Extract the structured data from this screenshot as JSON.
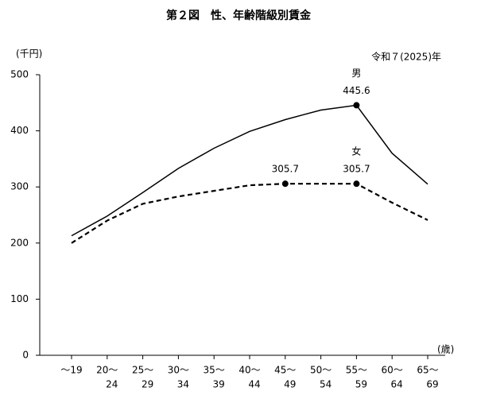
{
  "chart_data": {
    "type": "line",
    "title": "第２図　性、年齢階級別賃金",
    "y_unit": "(千円)",
    "x_unit": "(歳)",
    "note": "令和７(2025)年",
    "categories": [
      [
        "～19"
      ],
      [
        "20～",
        "24"
      ],
      [
        "25～",
        "29"
      ],
      [
        "30～",
        "34"
      ],
      [
        "35～",
        "39"
      ],
      [
        "40～",
        "44"
      ],
      [
        "45～",
        "49"
      ],
      [
        "50～",
        "54"
      ],
      [
        "55～",
        "59"
      ],
      [
        "60～",
        "64"
      ],
      [
        "65～",
        "69"
      ]
    ],
    "series": [
      {
        "name": "男",
        "color": "#000000",
        "style": "solid",
        "values": [
          213,
          248,
          290,
          333,
          369,
          399,
          420,
          437,
          445.6,
          360,
          305
        ],
        "value_labels": [
          null,
          null,
          null,
          null,
          null,
          null,
          null,
          null,
          "445.6",
          null,
          null
        ]
      },
      {
        "name": "女",
        "color": "#000000",
        "style": "dashed",
        "values": [
          200,
          240,
          270,
          283,
          293,
          303,
          305.7,
          305.7,
          305.7,
          272,
          241
        ],
        "value_labels": [
          null,
          null,
          null,
          null,
          null,
          null,
          "305.7",
          null,
          "305.7",
          null,
          null
        ]
      }
    ],
    "ylim": [
      0,
      500
    ],
    "yticks": [
      0,
      100,
      200,
      300,
      400,
      500
    ],
    "grid": false
  }
}
